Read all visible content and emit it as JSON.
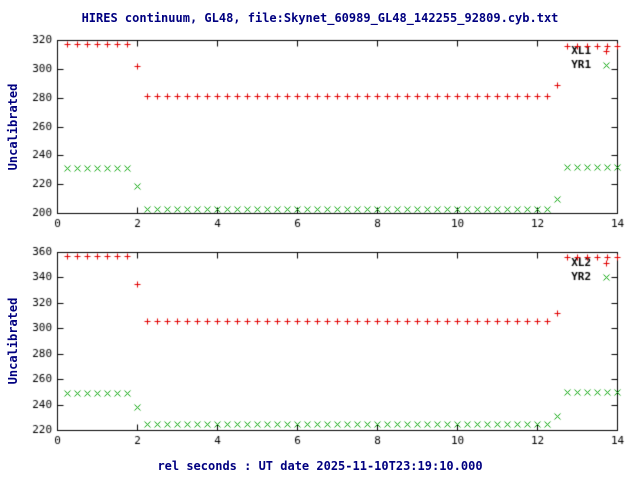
{
  "chart_data": {
    "type": "scatter",
    "title": "HIRES continuum, GL48, file:Skynet_60989_GL48_142255_92809.cyb.txt",
    "xlabel": "rel seconds : UT date 2025-11-10T23:19:10.000",
    "grid": false,
    "legend_position": "top-right-inside",
    "panels": [
      {
        "ylabel": "Uncalibrated",
        "ylim": [
          200,
          320
        ],
        "yticks": [
          200,
          220,
          240,
          260,
          280,
          300,
          320
        ],
        "xlim": [
          0,
          14
        ],
        "xticks": [
          0,
          2,
          4,
          6,
          8,
          10,
          12,
          14
        ],
        "x": [
          0.25,
          0.5,
          0.75,
          1,
          1.25,
          1.5,
          1.75,
          2,
          2.25,
          2.5,
          2.75,
          3,
          3.25,
          3.5,
          3.75,
          4,
          4.25,
          4.5,
          4.75,
          5,
          5.25,
          5.5,
          5.75,
          6,
          6.25,
          6.5,
          6.75,
          7,
          7.25,
          7.5,
          7.75,
          8,
          8.25,
          8.5,
          8.75,
          9,
          9.25,
          9.5,
          9.75,
          10,
          10.25,
          10.5,
          10.75,
          11,
          11.25,
          11.5,
          11.75,
          12,
          12.25,
          12.5,
          12.75,
          13,
          13.25,
          13.5,
          13.75,
          14
        ],
        "series": [
          {
            "name": "XL1",
            "marker": "plus",
            "color": "#e00000",
            "y": [
              317,
              317,
              317,
              317,
              317,
              317,
              317,
              302,
              281,
              281,
              281,
              281,
              281,
              281,
              281,
              281,
              281,
              281,
              281,
              281,
              281,
              281,
              281,
              281,
              281,
              281,
              281,
              281,
              281,
              281,
              281,
              281,
              281,
              281,
              281,
              281,
              281,
              281,
              281,
              281,
              281,
              281,
              281,
              281,
              281,
              281,
              281,
              281,
              281,
              289,
              316,
              316,
              316,
              316,
              316,
              316
            ]
          },
          {
            "name": "YR1",
            "marker": "cross",
            "color": "#00a000",
            "y": [
              231,
              231,
              231,
              231,
              231,
              231,
              231,
              219,
              203,
              203,
              203,
              203,
              203,
              203,
              203,
              203,
              203,
              203,
              203,
              203,
              203,
              203,
              203,
              203,
              203,
              203,
              203,
              203,
              203,
              203,
              203,
              203,
              203,
              203,
              203,
              203,
              203,
              203,
              203,
              203,
              203,
              203,
              203,
              203,
              203,
              203,
              203,
              203,
              203,
              210,
              232,
              232,
              232,
              232,
              232,
              232
            ]
          }
        ]
      },
      {
        "ylabel": "Uncalibrated",
        "ylim": [
          220,
          360
        ],
        "yticks": [
          220,
          240,
          260,
          280,
          300,
          320,
          340,
          360
        ],
        "xlim": [
          0,
          14
        ],
        "xticks": [
          0,
          2,
          4,
          6,
          8,
          10,
          12,
          14
        ],
        "x": [
          0.25,
          0.5,
          0.75,
          1,
          1.25,
          1.5,
          1.75,
          2,
          2.25,
          2.5,
          2.75,
          3,
          3.25,
          3.5,
          3.75,
          4,
          4.25,
          4.5,
          4.75,
          5,
          5.25,
          5.5,
          5.75,
          6,
          6.25,
          6.5,
          6.75,
          7,
          7.25,
          7.5,
          7.75,
          8,
          8.25,
          8.5,
          8.75,
          9,
          9.25,
          9.5,
          9.75,
          10,
          10.25,
          10.5,
          10.75,
          11,
          11.25,
          11.5,
          11.75,
          12,
          12.25,
          12.5,
          12.75,
          13,
          13.25,
          13.5,
          13.75,
          14
        ],
        "series": [
          {
            "name": "XL2",
            "marker": "plus",
            "color": "#e00000",
            "y": [
              357,
              357,
              357,
              357,
              357,
              357,
              357,
              335,
              306,
              306,
              306,
              306,
              306,
              306,
              306,
              306,
              306,
              306,
              306,
              306,
              306,
              306,
              306,
              306,
              306,
              306,
              306,
              306,
              306,
              306,
              306,
              306,
              306,
              306,
              306,
              306,
              306,
              306,
              306,
              306,
              306,
              306,
              306,
              306,
              306,
              306,
              306,
              306,
              306,
              312,
              356,
              356,
              356,
              356,
              356,
              356
            ]
          },
          {
            "name": "YR2",
            "marker": "cross",
            "color": "#00a000",
            "y": [
              249,
              249,
              249,
              249,
              249,
              249,
              249,
              238,
              225,
              225,
              225,
              225,
              225,
              225,
              225,
              225,
              225,
              225,
              225,
              225,
              225,
              225,
              225,
              225,
              225,
              225,
              225,
              225,
              225,
              225,
              225,
              225,
              225,
              225,
              225,
              225,
              225,
              225,
              225,
              225,
              225,
              225,
              225,
              225,
              225,
              225,
              225,
              225,
              225,
              231,
              250,
              250,
              250,
              250,
              250,
              250
            ]
          }
        ]
      }
    ],
    "text_color": "#000080",
    "tick_color": "#000000"
  }
}
